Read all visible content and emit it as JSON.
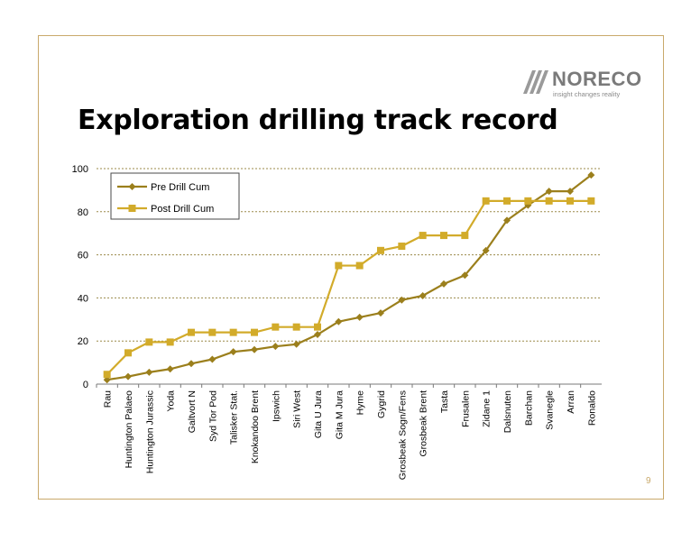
{
  "slide": {
    "title": "Exploration drilling track record",
    "page_number": "9"
  },
  "logo": {
    "name": "NORECO",
    "tagline": "insight changes reality"
  },
  "colors": {
    "frame": "#c9a96b",
    "pre_drill": "#9b7f1c",
    "post_drill": "#d2ab2a",
    "grid": "#9b8a4a"
  },
  "chart_data": {
    "type": "line",
    "title": "",
    "xlabel": "",
    "ylabel": "",
    "ylim": [
      0,
      100
    ],
    "yticks": [
      0,
      20,
      40,
      60,
      80,
      100
    ],
    "grid": "horizontal dashed",
    "legend_position": "top-left",
    "categories": [
      "Rau",
      "Huntington Palaeo",
      "Huntington Jurassic",
      "Yoda",
      "Galtvort N",
      "Syd Tor Pod",
      "Talisker Stat.",
      "Knokandoo Brent",
      "Ipswich",
      "Siri West",
      "Gita U Jura",
      "Gita M Jura",
      "Hyme",
      "Gygrid",
      "Grosbeak Sogn/Fens",
      "Grosbeak Brent",
      "Tasta",
      "Frusalen",
      "Zidane 1",
      "Dalsnuten",
      "Barchan",
      "Svanegle",
      "Arran",
      "Ronaldo"
    ],
    "series": [
      {
        "name": "Pre Drill Cum",
        "marker": "diamond",
        "values": [
          2,
          3.5,
          5.5,
          7,
          9.5,
          11.5,
          15,
          16,
          17.5,
          18.5,
          23,
          29,
          31,
          33,
          39,
          41,
          46.5,
          50.5,
          62,
          76,
          83,
          89.5,
          89.5,
          97
        ]
      },
      {
        "name": "Post Drill Cum",
        "marker": "square",
        "values": [
          4.5,
          14.5,
          19.5,
          19.5,
          24,
          24,
          24,
          24,
          26.5,
          26.5,
          26.5,
          55,
          55,
          62,
          64,
          69,
          69,
          69,
          85,
          85,
          85,
          85,
          85,
          85
        ]
      }
    ]
  }
}
